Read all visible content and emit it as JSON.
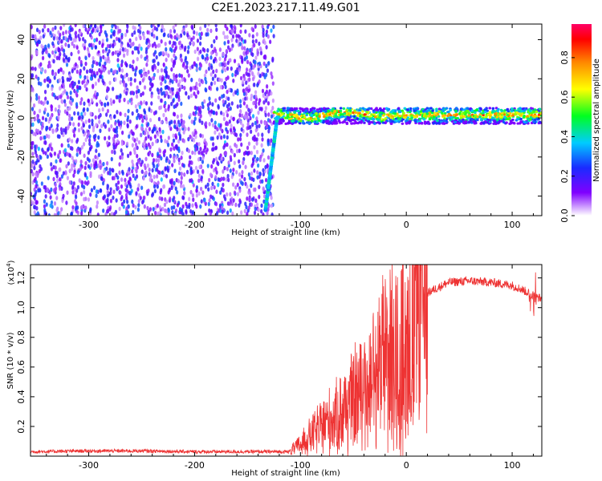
{
  "figure": {
    "title": "C2E1.2023.217.11.49.G01"
  },
  "chart_data": [
    {
      "type": "heatmap",
      "xlabel": "Height of straight line (km)",
      "ylabel": "Frequency (Hz)",
      "xlim": [
        -355,
        128
      ],
      "ylim": [
        -50,
        48
      ],
      "xticks": [
        -300,
        -200,
        -100,
        0,
        100
      ],
      "yticks": [
        -40,
        -20,
        0,
        20,
        40
      ],
      "colorbar": {
        "label": "Normalized spectral amplitude",
        "range": [
          0,
          0.97
        ],
        "ticks": [
          "0.0",
          "0.2",
          "0.4",
          "0.6",
          "0.8"
        ],
        "tick_values": [
          0,
          0.2,
          0.4,
          0.6,
          0.8
        ]
      },
      "regions": [
        {
          "x_range": [
            -355,
            -125
          ],
          "y_range": [
            -50,
            48
          ],
          "amplitude": [
            0.05,
            0.3
          ]
        },
        {
          "x_range": [
            -125,
            128
          ],
          "y_range": [
            -3,
            5
          ],
          "amplitude": [
            0.3,
            0.9
          ]
        }
      ],
      "line_feature": {
        "x": [
          -133,
          -122
        ],
        "y": [
          -47,
          0
        ]
      }
    },
    {
      "type": "line",
      "xlabel": "Height of straight line (km)",
      "ylabel": "SNR (10 * v/v)",
      "y_multiplier": "(x10",
      "y_multiplier_exp": "4",
      "y_multiplier_close": ")",
      "xlim": [
        -355,
        128
      ],
      "ylim": [
        0,
        12900
      ],
      "xticks": [
        -300,
        -200,
        -100,
        0,
        100
      ],
      "yticks": [
        2000,
        4000,
        6000,
        8000,
        10000,
        12000
      ],
      "ytick_labels": [
        "0.2",
        "0.4",
        "0.6",
        "0.8",
        "1.0",
        "1.2"
      ],
      "series": [
        {
          "color": "#ee3333",
          "x": [
            -355,
            -300,
            -250,
            -200,
            -150,
            -110,
            -100,
            -80,
            -60,
            -40,
            -20,
            -10,
            0,
            10,
            20,
            40,
            60,
            80,
            100,
            110,
            120,
            128
          ],
          "y": [
            300,
            350,
            350,
            300,
            300,
            300,
            800,
            2000,
            3000,
            4500,
            6500,
            7500,
            8000,
            9500,
            11000,
            11700,
            11800,
            11700,
            11500,
            11200,
            10800,
            10600
          ]
        }
      ]
    }
  ]
}
